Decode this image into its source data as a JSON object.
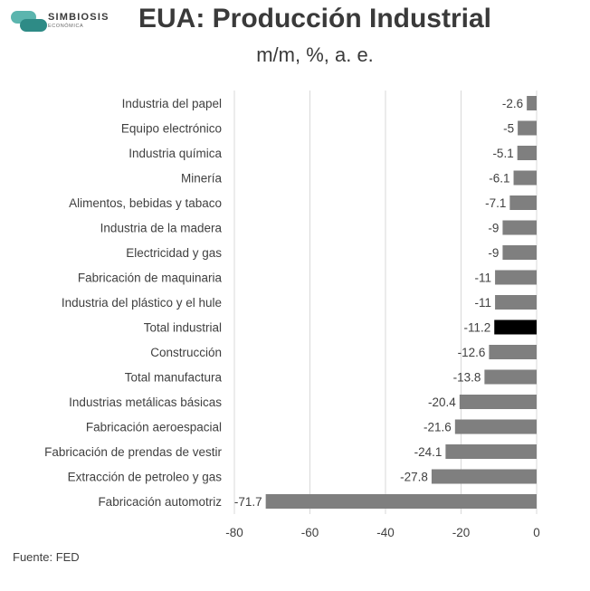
{
  "brand": {
    "name": "SIMBIOSIS",
    "tagline": "ECONÓMICA",
    "color_dark": "#2e8b86",
    "color_light": "#5bb5ae"
  },
  "header": {
    "title": "EUA: Producción Industrial",
    "subtitle": "m/m, %, a. e."
  },
  "footer": {
    "source": "Fuente: FED"
  },
  "chart_data": {
    "type": "bar",
    "orientation": "horizontal",
    "categories": [
      "Industria del papel",
      "Equipo electrónico",
      "Industria química",
      "Minería",
      "Alimentos, bebidas y tabaco",
      "Industria de la madera",
      "Electricidad y gas",
      "Fabricación de maquinaria",
      "Industria del plástico y el hule",
      "Total industrial",
      "Construcción",
      "Total manufactura",
      "Industrias metálicas básicas",
      "Fabricación aeroespacial",
      "Fabricación de prendas de vestir",
      "Extracción de petroleo y gas",
      "Fabricación automotriz"
    ],
    "values": [
      -2.6,
      -5,
      -5.1,
      -6.1,
      -7.1,
      -9,
      -9,
      -11,
      -11,
      -11.2,
      -12.6,
      -13.8,
      -20.4,
      -21.6,
      -24.1,
      -27.8,
      -71.7
    ],
    "value_labels": [
      "-2.6",
      "-5",
      "-5.1",
      "-6.1",
      "-7.1",
      "-9",
      "-9",
      "-11",
      "-11",
      "-11.2",
      "-12.6",
      "-13.8",
      "-20.4",
      "-21.6",
      "-24.1",
      "-27.8",
      "-71.7"
    ],
    "highlight": "Total industrial",
    "xlim": [
      -80,
      0
    ],
    "xticks": [
      -80,
      -60,
      -40,
      -20,
      0
    ],
    "grid": true,
    "colors": {
      "bar": "#7f7f7f",
      "highlight": "#000000",
      "grid": "#d9d9d9"
    }
  }
}
